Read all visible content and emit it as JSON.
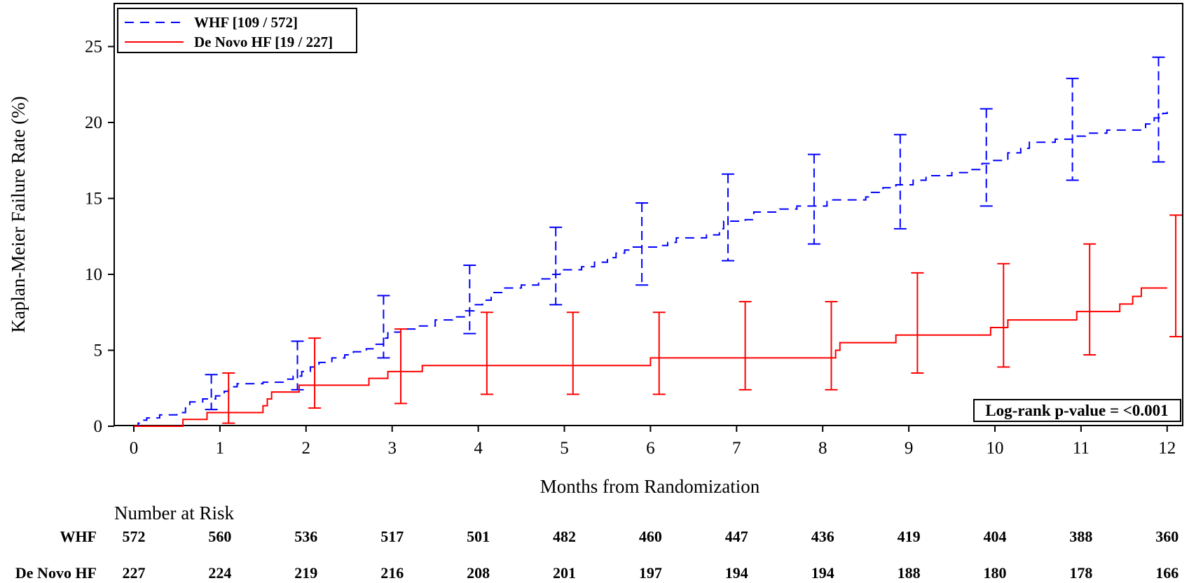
{
  "chart_data": {
    "type": "line",
    "subtype": "kaplan-meier step plot with confidence interval error bars",
    "xlabel": "Months from Randomization",
    "ylabel": "Kaplan-Meier Failure Rate (%)",
    "xlim": [
      0,
      12
    ],
    "ylim": [
      0,
      27
    ],
    "xticks": [
      0,
      1,
      2,
      3,
      4,
      5,
      6,
      7,
      8,
      9,
      10,
      11,
      12
    ],
    "yticks": [
      0,
      5,
      10,
      15,
      20,
      25
    ],
    "grid": false,
    "legend_position": "top-left",
    "annotation": "Log-rank p-value = <0.001",
    "annotation_position": "bottom-right",
    "series": [
      {
        "name": "WHF [109 / 572]",
        "color": "#0000ff",
        "line_style": "dashed",
        "steps": [
          [
            0,
            0
          ],
          [
            0.05,
            0.2
          ],
          [
            0.1,
            0.4
          ],
          [
            0.15,
            0.55
          ],
          [
            0.3,
            0.75
          ],
          [
            0.5,
            0.9
          ],
          [
            0.6,
            1.2
          ],
          [
            0.65,
            1.6
          ],
          [
            0.8,
            1.8
          ],
          [
            0.95,
            2.0
          ],
          [
            1.05,
            2.3
          ],
          [
            1.1,
            2.6
          ],
          [
            1.2,
            2.8
          ],
          [
            1.5,
            2.9
          ],
          [
            1.75,
            3.1
          ],
          [
            1.85,
            3.3
          ],
          [
            1.95,
            3.6
          ],
          [
            2.05,
            3.9
          ],
          [
            2.15,
            4.2
          ],
          [
            2.3,
            4.5
          ],
          [
            2.45,
            4.7
          ],
          [
            2.55,
            4.9
          ],
          [
            2.7,
            5.1
          ],
          [
            2.8,
            5.4
          ],
          [
            2.9,
            5.8
          ],
          [
            2.95,
            6.2
          ],
          [
            3.1,
            6.4
          ],
          [
            3.3,
            6.6
          ],
          [
            3.5,
            7.0
          ],
          [
            3.7,
            7.2
          ],
          [
            3.85,
            7.6
          ],
          [
            3.95,
            8.0
          ],
          [
            4.05,
            8.3
          ],
          [
            4.15,
            8.8
          ],
          [
            4.3,
            9.1
          ],
          [
            4.5,
            9.3
          ],
          [
            4.7,
            9.7
          ],
          [
            4.85,
            10.0
          ],
          [
            4.95,
            10.3
          ],
          [
            5.2,
            10.5
          ],
          [
            5.35,
            10.8
          ],
          [
            5.5,
            11.1
          ],
          [
            5.6,
            11.4
          ],
          [
            5.7,
            11.6
          ],
          [
            5.8,
            11.8
          ],
          [
            6.1,
            11.9
          ],
          [
            6.2,
            12.1
          ],
          [
            6.3,
            12.4
          ],
          [
            6.65,
            12.6
          ],
          [
            6.8,
            13.0
          ],
          [
            6.85,
            13.5
          ],
          [
            7.1,
            13.6
          ],
          [
            7.2,
            14.1
          ],
          [
            7.5,
            14.3
          ],
          [
            7.7,
            14.5
          ],
          [
            8.05,
            14.8
          ],
          [
            8.1,
            14.9
          ],
          [
            8.5,
            15.1
          ],
          [
            8.55,
            15.4
          ],
          [
            8.7,
            15.7
          ],
          [
            8.85,
            15.9
          ],
          [
            9.05,
            16.2
          ],
          [
            9.2,
            16.5
          ],
          [
            9.5,
            16.7
          ],
          [
            9.7,
            16.9
          ],
          [
            9.85,
            17.3
          ],
          [
            9.95,
            17.5
          ],
          [
            10.15,
            18.0
          ],
          [
            10.3,
            18.3
          ],
          [
            10.4,
            18.7
          ],
          [
            10.7,
            18.9
          ],
          [
            10.9,
            19.1
          ],
          [
            11.05,
            19.3
          ],
          [
            11.3,
            19.5
          ],
          [
            11.75,
            19.9
          ],
          [
            11.85,
            20.3
          ],
          [
            11.95,
            20.6
          ],
          [
            12.0,
            20.7
          ]
        ],
        "ci": [
          {
            "x": 0.9,
            "lower": 1.1,
            "upper": 3.4
          },
          {
            "x": 1.9,
            "lower": 2.4,
            "upper": 5.6
          },
          {
            "x": 2.9,
            "lower": 4.5,
            "upper": 8.6
          },
          {
            "x": 3.9,
            "lower": 6.1,
            "upper": 10.6
          },
          {
            "x": 4.9,
            "lower": 8.0,
            "upper": 13.1
          },
          {
            "x": 5.9,
            "lower": 9.3,
            "upper": 14.7
          },
          {
            "x": 6.9,
            "lower": 10.9,
            "upper": 16.6
          },
          {
            "x": 7.9,
            "lower": 12.0,
            "upper": 17.9
          },
          {
            "x": 8.9,
            "lower": 13.0,
            "upper": 19.2
          },
          {
            "x": 9.9,
            "lower": 14.5,
            "upper": 20.9
          },
          {
            "x": 10.9,
            "lower": 16.2,
            "upper": 22.9
          },
          {
            "x": 11.9,
            "lower": 17.4,
            "upper": 24.3
          }
        ]
      },
      {
        "name": "De Novo HF [19 / 227]",
        "color": "#ff0000",
        "line_style": "solid",
        "steps": [
          [
            0,
            0
          ],
          [
            0.57,
            0.45
          ],
          [
            0.85,
            0.9
          ],
          [
            1.5,
            1.35
          ],
          [
            1.55,
            1.8
          ],
          [
            1.6,
            2.25
          ],
          [
            1.92,
            2.7
          ],
          [
            2.73,
            3.15
          ],
          [
            2.95,
            3.6
          ],
          [
            3.35,
            4.0
          ],
          [
            6.0,
            4.5
          ],
          [
            8.15,
            5.0
          ],
          [
            8.2,
            5.5
          ],
          [
            8.85,
            6.0
          ],
          [
            9.95,
            6.5
          ],
          [
            10.15,
            7.0
          ],
          [
            10.95,
            7.55
          ],
          [
            11.45,
            8.05
          ],
          [
            11.6,
            8.55
          ],
          [
            11.7,
            9.1
          ],
          [
            12.0,
            9.1
          ]
        ],
        "ci": [
          {
            "x": 1.1,
            "lower": 0.2,
            "upper": 3.5
          },
          {
            "x": 2.1,
            "lower": 1.2,
            "upper": 5.8
          },
          {
            "x": 3.1,
            "lower": 1.5,
            "upper": 6.4
          },
          {
            "x": 4.1,
            "lower": 2.1,
            "upper": 7.5
          },
          {
            "x": 5.1,
            "lower": 2.1,
            "upper": 7.5
          },
          {
            "x": 6.1,
            "lower": 2.1,
            "upper": 7.5
          },
          {
            "x": 7.1,
            "lower": 2.4,
            "upper": 8.2
          },
          {
            "x": 8.1,
            "lower": 2.4,
            "upper": 8.2
          },
          {
            "x": 9.1,
            "lower": 3.5,
            "upper": 10.1
          },
          {
            "x": 10.1,
            "lower": 3.9,
            "upper": 10.7
          },
          {
            "x": 11.1,
            "lower": 4.7,
            "upper": 12.0
          },
          {
            "x": 12.1,
            "lower": 5.9,
            "upper": 13.9
          }
        ]
      }
    ],
    "risk_table": {
      "title": "Number at Risk",
      "times": [
        0,
        1,
        2,
        3,
        4,
        5,
        6,
        7,
        8,
        9,
        10,
        11,
        12
      ],
      "rows": [
        {
          "label": "WHF",
          "values": [
            "572",
            "560",
            "536",
            "517",
            "501",
            "482",
            "460",
            "447",
            "436",
            "419",
            "404",
            "388",
            "360"
          ]
        },
        {
          "label": "De Novo HF",
          "values": [
            "227",
            "224",
            "219",
            "216",
            "208",
            "201",
            "197",
            "194",
            "194",
            "188",
            "180",
            "178",
            "166"
          ]
        }
      ]
    }
  }
}
